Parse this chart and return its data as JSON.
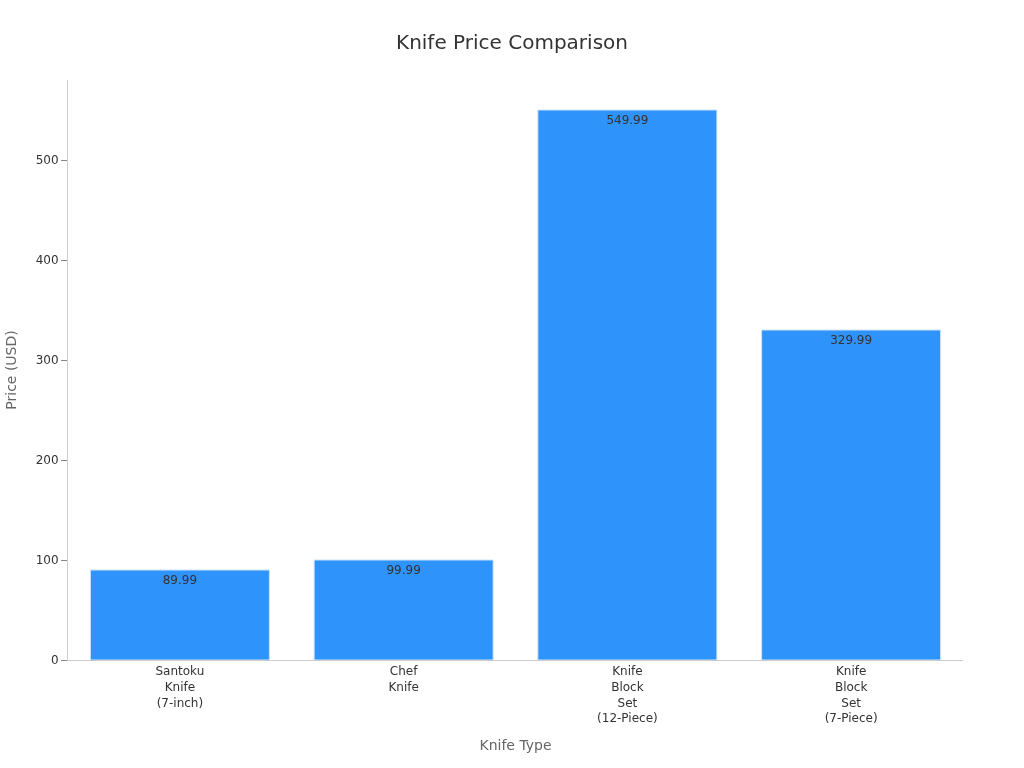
{
  "chart_data": {
    "type": "bar",
    "title": "Knife Price Comparison",
    "xlabel": "Knife Type",
    "ylabel": "Price (USD)",
    "categories": [
      "Santoku Knife (7-inch)",
      "Chef Knife",
      "Knife Block Set (12-Piece)",
      "Knife Block Set (7-Piece)"
    ],
    "values": [
      89.99,
      99.99,
      549.99,
      329.99
    ],
    "color": "#2e93fa",
    "ylim": [
      0,
      580
    ],
    "yticks": [
      0,
      100,
      200,
      300,
      400,
      500
    ],
    "data_labels": true
  }
}
